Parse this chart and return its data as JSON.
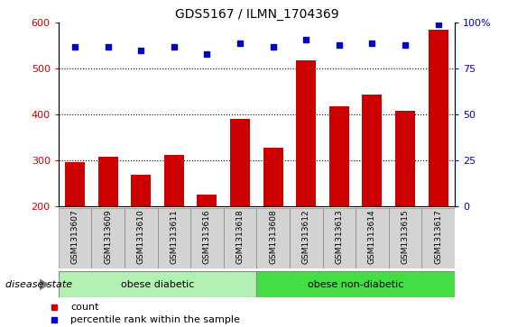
{
  "title": "GDS5167 / ILMN_1704369",
  "samples": [
    "GSM1313607",
    "GSM1313609",
    "GSM1313610",
    "GSM1313611",
    "GSM1313616",
    "GSM1313618",
    "GSM1313608",
    "GSM1313612",
    "GSM1313613",
    "GSM1313614",
    "GSM1313615",
    "GSM1313617"
  ],
  "counts": [
    295,
    308,
    268,
    312,
    225,
    390,
    328,
    518,
    418,
    443,
    408,
    585
  ],
  "percentiles": [
    87,
    87,
    85,
    87,
    83,
    89,
    87,
    91,
    88,
    89,
    88,
    99
  ],
  "ylim_left": [
    200,
    600
  ],
  "ylim_right": [
    0,
    100
  ],
  "yticks_left": [
    200,
    300,
    400,
    500,
    600
  ],
  "yticks_right": [
    0,
    25,
    50,
    75,
    100
  ],
  "bar_color": "#cc0000",
  "dot_color": "#0000cc",
  "bar_width": 0.6,
  "groups": [
    {
      "label": "obese diabetic",
      "start": 0,
      "end": 6,
      "color": "#b3f0b3"
    },
    {
      "label": "obese non-diabetic",
      "start": 6,
      "end": 12,
      "color": "#44dd44"
    }
  ],
  "disease_state_label": "disease state",
  "legend_count": "count",
  "legend_pct": "percentile rank within the sample",
  "grid_yticks": [
    300,
    400,
    500
  ],
  "tick_color_left": "#cc0000",
  "tick_color_right": "#0000cc",
  "bg_xticklabel": "#d3d3d3",
  "n_diabetic": 6,
  "n_total": 12
}
